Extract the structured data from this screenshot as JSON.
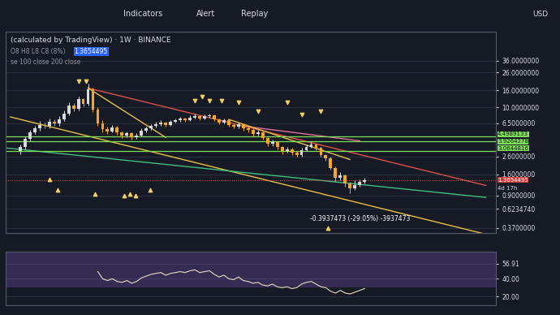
{
  "toolbar": [
    "Indicators",
    "Alert",
    "Replay"
  ],
  "chart_data": [
    {
      "type": "candlestick",
      "title": "(calculated by TradingView) · 1W · BINANCE",
      "subtitle": "O8 H8 L8 C8 (8%)",
      "header_price": "1.3654495",
      "legend_text": "se 100 close 200 close",
      "measure_text": "-0.3937473 (-29.05%) -3937473",
      "countdown": "4d 17h",
      "currency": "USD",
      "last_price_label": "1.3654495",
      "categories": [
        null,
        null,
        null,
        null,
        null,
        null,
        null,
        null,
        null,
        null,
        null,
        null,
        null,
        null,
        null,
        null,
        null,
        null,
        null,
        null,
        null,
        null,
        null,
        null,
        null,
        null,
        null,
        null,
        null,
        null,
        null,
        null,
        null,
        null,
        null,
        null,
        null,
        null,
        null,
        null,
        null,
        null,
        null,
        null,
        null,
        null,
        null,
        null,
        null,
        null,
        null,
        null,
        null,
        null,
        null,
        null,
        null,
        null,
        null,
        null,
        null,
        null,
        null,
        null,
        null,
        null,
        null,
        null,
        null,
        null,
        null,
        null
      ],
      "open": [
        3.0,
        3.4,
        4.2,
        5.0,
        5.6,
        6.2,
        6.0,
        6.8,
        6.4,
        7.2,
        8.5,
        10.5,
        9.6,
        12.5,
        11.0,
        16.5,
        9.5,
        6.5,
        5.5,
        5.2,
        5.8,
        5.0,
        4.6,
        4.9,
        4.4,
        4.6,
        5.3,
        5.6,
        6.0,
        6.3,
        6.6,
        6.2,
        6.8,
        7.0,
        7.3,
        7.1,
        7.6,
        7.9,
        7.4,
        7.8,
        8.0,
        7.2,
        6.6,
        7.0,
        6.2,
        5.9,
        6.3,
        5.6,
        5.4,
        4.8,
        5.1,
        4.3,
        3.7,
        3.9,
        3.4,
        3.0,
        3.2,
        2.9,
        2.7,
        3.1,
        3.4,
        3.6,
        3.3,
        2.7,
        2.5,
        1.9,
        1.45,
        1.55,
        1.25,
        1.1,
        1.2,
        1.3
      ],
      "high": [
        3.6,
        4.5,
        5.4,
        6.0,
        6.9,
        6.6,
        7.4,
        7.2,
        7.8,
        9.2,
        11.5,
        11.2,
        13.5,
        13.0,
        19.0,
        17.0,
        10.0,
        7.0,
        5.9,
        6.2,
        6.0,
        5.2,
        5.2,
        5.0,
        4.9,
        5.6,
        5.9,
        6.3,
        6.7,
        7.0,
        6.8,
        7.1,
        7.4,
        7.7,
        7.6,
        8.0,
        8.4,
        8.1,
        8.2,
        8.5,
        8.2,
        7.4,
        7.3,
        7.1,
        6.5,
        6.6,
        6.4,
        5.9,
        5.6,
        5.4,
        5.2,
        4.4,
        4.1,
        4.0,
        3.5,
        3.4,
        3.3,
        3.0,
        3.3,
        3.6,
        3.9,
        3.7,
        3.4,
        2.8,
        2.6,
        2.0,
        1.7,
        1.6,
        1.3,
        1.35,
        1.4,
        1.45
      ],
      "low": [
        2.8,
        3.2,
        4.0,
        4.8,
        5.3,
        5.6,
        5.7,
        6.0,
        6.1,
        6.9,
        8.0,
        9.0,
        9.2,
        10.2,
        10.5,
        8.8,
        6.0,
        5.1,
        4.8,
        5.0,
        4.7,
        4.3,
        4.4,
        4.1,
        4.2,
        4.5,
        5.1,
        5.4,
        5.8,
        6.1,
        5.9,
        6.0,
        6.6,
        6.8,
        6.8,
        6.9,
        7.3,
        7.1,
        7.2,
        7.5,
        6.9,
        6.3,
        6.4,
        5.9,
        5.6,
        5.7,
        5.3,
        5.1,
        4.5,
        4.6,
        4.1,
        3.5,
        3.5,
        3.2,
        2.8,
        2.9,
        2.7,
        2.6,
        2.6,
        3.0,
        3.3,
        3.1,
        2.6,
        2.3,
        1.8,
        1.3,
        1.35,
        1.15,
        0.95,
        1.05,
        1.15,
        1.25
      ],
      "close": [
        3.4,
        4.2,
        5.0,
        5.6,
        6.2,
        6.0,
        6.8,
        6.4,
        7.2,
        8.5,
        10.5,
        9.6,
        12.5,
        11.0,
        16.5,
        9.5,
        6.5,
        5.5,
        5.2,
        5.8,
        5.0,
        4.6,
        4.9,
        4.4,
        4.6,
        5.3,
        5.6,
        6.0,
        6.3,
        6.6,
        6.2,
        6.8,
        7.0,
        7.3,
        7.1,
        7.6,
        7.9,
        7.4,
        7.8,
        8.0,
        7.2,
        6.6,
        7.0,
        6.2,
        5.9,
        6.3,
        5.6,
        5.4,
        4.8,
        5.1,
        4.3,
        3.7,
        3.9,
        3.4,
        3.0,
        3.2,
        2.9,
        2.7,
        3.1,
        3.4,
        3.6,
        3.3,
        2.7,
        2.5,
        1.9,
        1.45,
        1.55,
        1.25,
        1.1,
        1.2,
        1.3,
        1.3654495
      ],
      "colors": [
        "#d9d9d9",
        "#d9d9d9",
        "#d9d9d9",
        "#d9d9d9",
        "#d9d9d9",
        "#f5a623",
        "#d9d9d9",
        "#f5a623",
        "#d9d9d9",
        "#d9d9d9",
        "#d9d9d9",
        "#f5a623",
        "#d9d9d9",
        "#f5a623",
        "#d9d9d9",
        "#f5a623",
        "#f5a623",
        "#f5a623",
        "#f5a623",
        "#d9d9d9",
        "#f5a623",
        "#f5a623",
        "#d9d9d9",
        "#f5a623",
        "#d9d9d9",
        "#d9d9d9",
        "#d9d9d9",
        "#d9d9d9",
        "#d9d9d9",
        "#d9d9d9",
        "#f5a623",
        "#d9d9d9",
        "#d9d9d9",
        "#d9d9d9",
        "#f5a623",
        "#d9d9d9",
        "#d9d9d9",
        "#f5a623",
        "#d9d9d9",
        "#d9d9d9",
        "#f5a623",
        "#f5a623",
        "#d9d9d9",
        "#f5a623",
        "#f5a623",
        "#d9d9d9",
        "#f5a623",
        "#f5a623",
        "#f5a623",
        "#d9d9d9",
        "#f5a623",
        "#f5a623",
        "#d9d9d9",
        "#f5a623",
        "#f5a623",
        "#d9d9d9",
        "#f5a623",
        "#f5a623",
        "#d9d9d9",
        "#d9d9d9",
        "#d9d9d9",
        "#f5a623",
        "#f5a623",
        "#f5a623",
        "#f5a623",
        "#f5a623",
        "#d9d9d9",
        "#f5a623",
        "#f5a623",
        "#d9d9d9",
        "#d9d9d9",
        "#d9d9d9"
      ],
      "levels": [
        {
          "value": 4.4989133,
          "label": "4.4989133",
          "color": "#7ee05a"
        },
        {
          "value": 3.9264278,
          "label": "3.9264278",
          "color": "#7ee05a"
        },
        {
          "value": 3.0644816,
          "label": "3.0644816",
          "color": "#7ee05a"
        }
      ],
      "lines": [
        {
          "x": [
            14,
            96
          ],
          "values": [
            17.0,
            1.18
          ],
          "color": "#e0504a"
        },
        {
          "x": [
            46,
            70
          ],
          "values": [
            6.0,
            4.0
          ],
          "color": "#e070a0"
        },
        {
          "x": [
            -2,
            97
          ],
          "values": [
            7.7,
            0.3
          ],
          "color": "#e8c040"
        },
        {
          "x": [
            -3,
            96
          ],
          "values": [
            3.3,
            0.85
          ],
          "color": "#3fbf7f"
        },
        {
          "x": [
            43,
            68
          ],
          "values": [
            7.2,
            2.4
          ],
          "color": "#e8c040"
        },
        {
          "x": [
            14,
            30
          ],
          "values": [
            17.0,
            4.4
          ],
          "color": "#e8c040"
        }
      ],
      "markers": [
        {
          "marker": "arrow_down",
          "color": "#f0d060",
          "x": [
            12,
            13.5,
            36,
            37.5,
            39,
            41.5,
            45,
            49,
            55,
            58,
            62
          ],
          "values": [
            20.6,
            20.6,
            12.1,
            13.3,
            12.1,
            12.1,
            11.5,
            9.1,
            11.4,
            8.3,
            9.1
          ]
        },
        {
          "marker": "arrow_up",
          "color": "#f0d060",
          "x": [
            6,
            7.7,
            15.5,
            21.4,
            22.6,
            23.8,
            26.8,
            63.4
          ],
          "values": [
            1.4,
            1.05,
            0.93,
            0.89,
            0.93,
            0.89,
            1.05,
            0.37
          ]
        }
      ],
      "log": "y",
      "ylim": [
        0.32,
        80
      ],
      "yticks": [
        {
          "value": 36,
          "label": "36.0000000"
        },
        {
          "value": 26,
          "label": "26.0000000"
        },
        {
          "value": 16,
          "label": "16.0000000"
        },
        {
          "value": 10,
          "label": "10.0000000"
        },
        {
          "value": 6.5,
          "label": "6.5000000"
        },
        {
          "value": 2.6,
          "label": "2.6000000"
        },
        {
          "value": 1.6,
          "label": "1.6000000"
        },
        {
          "value": 0.9,
          "label": "0.9000000"
        },
        {
          "value": 0.623474,
          "label": "0.6234740"
        },
        {
          "value": 0.37,
          "label": "0.3700000"
        }
      ],
      "grid": true,
      "tick_labels": "y"
    },
    {
      "type": "line",
      "categories": [
        null,
        null,
        null,
        null,
        null,
        null,
        null,
        null,
        null,
        null,
        null,
        null,
        null,
        null,
        null,
        null,
        null,
        null,
        null,
        null,
        null,
        null,
        null,
        null,
        null,
        null,
        null,
        null,
        null,
        null,
        null,
        null,
        null,
        null,
        null,
        null,
        null,
        null,
        null,
        null,
        null,
        null,
        null,
        null,
        null,
        null,
        null,
        null,
        null,
        null,
        null,
        null,
        null,
        null,
        null,
        null,
        null,
        null,
        null,
        null,
        null,
        null,
        null,
        null,
        null,
        null,
        null,
        null,
        null,
        null,
        null,
        null
      ],
      "values": [
        null,
        null,
        null,
        null,
        null,
        null,
        null,
        null,
        null,
        null,
        null,
        null,
        null,
        null,
        null,
        null,
        48,
        40,
        38,
        40,
        37,
        36,
        38,
        35,
        37,
        41,
        43,
        45,
        46,
        47,
        44,
        46,
        47,
        48,
        47,
        49,
        50,
        47,
        48,
        49,
        45,
        42,
        44,
        40,
        39,
        42,
        38,
        37,
        35,
        36,
        33,
        32,
        34,
        31,
        30,
        31,
        29,
        30,
        34,
        36,
        37,
        34,
        31,
        30,
        26,
        24,
        27,
        24,
        23,
        25,
        27,
        29
      ],
      "color": "#e8dcc0",
      "band": [
        30,
        70
      ],
      "ylim": [
        10,
        70
      ],
      "yticks": [
        56.91,
        {
          "value": 40,
          "label": "40.00"
        },
        {
          "value": 20,
          "label": "20.00"
        }
      ],
      "grid": true,
      "tick_labels": "y"
    }
  ]
}
